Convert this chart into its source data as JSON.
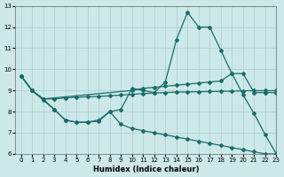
{
  "xlabel": "Humidex (Indice chaleur)",
  "xlim": [
    -0.5,
    23
  ],
  "ylim": [
    6,
    13
  ],
  "yticks": [
    6,
    7,
    8,
    9,
    10,
    11,
    12,
    13
  ],
  "xticks": [
    0,
    1,
    2,
    3,
    4,
    5,
    6,
    7,
    8,
    9,
    10,
    11,
    12,
    13,
    14,
    15,
    16,
    17,
    18,
    19,
    20,
    21,
    22,
    23
  ],
  "bg_color": "#cce8e8",
  "grid_color": "#aacccc",
  "line_color": "#1a6b6b",
  "line1_x": [
    0,
    1,
    2,
    3,
    4,
    5,
    6,
    7,
    8,
    9,
    10,
    11,
    12,
    13,
    14,
    15,
    16,
    17,
    18,
    19,
    20,
    21,
    22,
    23
  ],
  "line1_y": [
    9.7,
    9.0,
    8.6,
    8.1,
    7.6,
    7.5,
    7.5,
    7.6,
    8.0,
    8.1,
    9.1,
    9.0,
    8.9,
    9.4,
    11.4,
    12.7,
    12.0,
    12.0,
    10.9,
    9.8,
    8.8,
    7.9,
    6.9,
    6.0
  ],
  "line2_x": [
    0,
    1,
    2,
    10,
    11,
    12,
    13,
    14,
    15,
    16,
    17,
    18,
    19,
    20,
    21,
    22,
    23
  ],
  "line2_y": [
    9.7,
    9.0,
    8.6,
    9.0,
    9.1,
    9.15,
    9.2,
    9.25,
    9.3,
    9.35,
    9.4,
    9.45,
    9.8,
    9.8,
    8.9,
    8.9,
    8.9
  ],
  "line3_x": [
    0,
    1,
    2,
    3,
    4,
    5,
    6,
    7,
    8,
    9,
    10,
    11,
    12,
    13,
    14,
    15,
    16,
    17,
    18,
    19,
    20,
    21,
    22,
    23
  ],
  "line3_y": [
    9.7,
    9.0,
    8.6,
    8.6,
    8.65,
    8.68,
    8.7,
    8.72,
    8.75,
    8.78,
    8.82,
    8.85,
    8.88,
    8.9,
    8.92,
    8.93,
    8.94,
    8.95,
    8.96,
    8.97,
    8.98,
    8.99,
    8.99,
    8.99
  ],
  "line4_x": [
    0,
    1,
    2,
    3,
    4,
    5,
    6,
    7,
    8,
    9,
    10,
    11,
    12,
    13,
    14,
    15,
    16,
    17,
    18,
    19,
    20,
    21,
    22,
    23
  ],
  "line4_y": [
    9.7,
    9.0,
    8.55,
    8.1,
    7.6,
    7.5,
    7.5,
    7.55,
    8.0,
    7.4,
    7.2,
    7.1,
    7.0,
    6.9,
    6.8,
    6.7,
    6.6,
    6.5,
    6.4,
    6.3,
    6.2,
    6.1,
    6.0,
    6.0
  ]
}
